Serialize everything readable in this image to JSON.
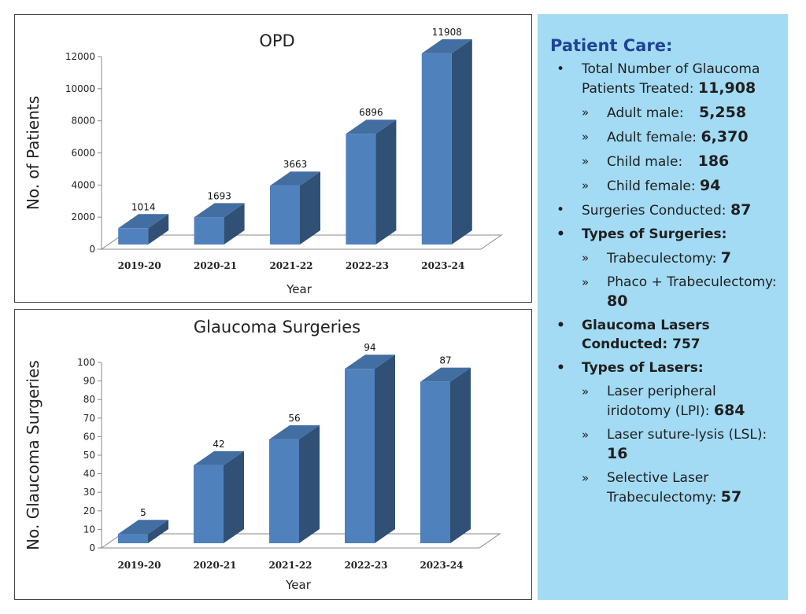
{
  "chart_data": [
    {
      "type": "bar",
      "title": "OPD",
      "xlabel": "Year",
      "ylabel": "No. of Patients",
      "categories": [
        "2019-20",
        "2020-21",
        "2021-22",
        "2022-23",
        "2023-24"
      ],
      "values": [
        1014,
        1693,
        3663,
        6896,
        11908
      ],
      "ylim": [
        0,
        12000
      ],
      "yticks": [
        0,
        2000,
        4000,
        6000,
        8000,
        10000,
        12000
      ],
      "bar_color": "#4f81bd",
      "grid": false,
      "style": "3d"
    },
    {
      "type": "bar",
      "title": "Glaucoma Surgeries",
      "xlabel": "Year",
      "ylabel": "No. Glaucoma Surgeries",
      "categories": [
        "2019-20",
        "2020-21",
        "2021-22",
        "2022-23",
        "2023-24"
      ],
      "values": [
        5,
        42,
        56,
        94,
        87
      ],
      "ylim": [
        0,
        100
      ],
      "yticks": [
        0,
        10,
        20,
        30,
        40,
        50,
        60,
        70,
        80,
        90,
        100
      ],
      "bar_color": "#4f81bd",
      "grid": false,
      "style": "3d"
    }
  ],
  "panel": {
    "title": "Patient Care:",
    "background": "#a3dbf4",
    "title_color": "#1f4396",
    "total_label": "Total Number of Glaucoma Patients Treated:",
    "total_value": "11,908",
    "adult_male_label": "Adult male:",
    "adult_male_value": "5,258",
    "adult_female_label": "Adult female:",
    "adult_female_value": "6,370",
    "child_male_label": "Child male:",
    "child_male_value": "186",
    "child_female_label": "Child female:",
    "child_female_value": "94",
    "surgeries_label": "Surgeries Conducted:",
    "surgeries_value": "87",
    "types_surgeries_label": "Types of Surgeries:",
    "trab_label": "Trabeculectomy:",
    "trab_value": "7",
    "phaco_label": "Phaco + Trabeculectomy:",
    "phaco_value": "80",
    "lasers_label": "Glaucoma Lasers Conducted: 757",
    "types_lasers_label": "Types of Lasers:",
    "lpi_label": "Laser peripheral iridotomy (LPI):",
    "lpi_value": "684",
    "lsl_label": "Laser suture-lysis (LSL):",
    "lsl_value": "16",
    "slt_label": "Selective Laser Trabeculectomy:",
    "slt_value": "57"
  }
}
